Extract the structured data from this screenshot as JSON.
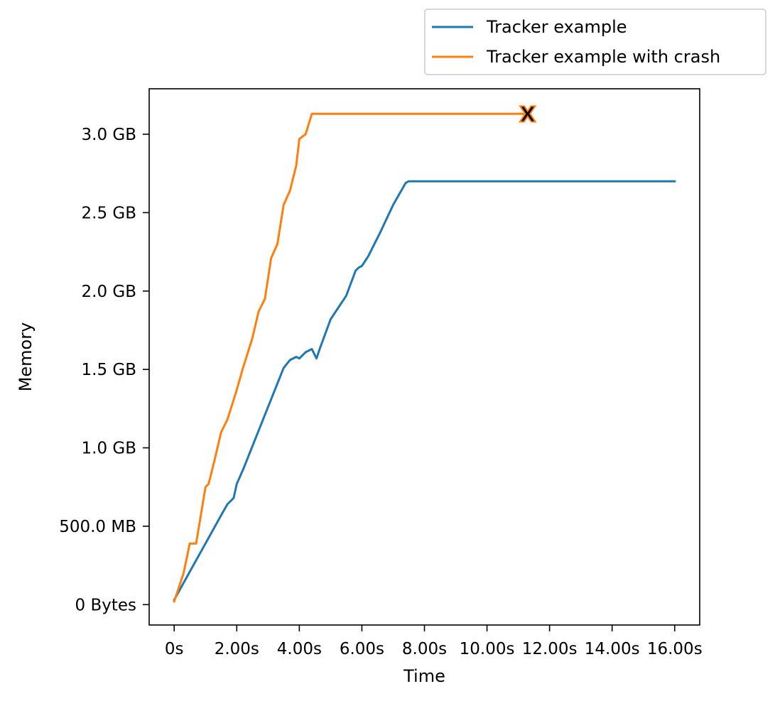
{
  "chart_data": {
    "type": "line",
    "xlabel": "Time",
    "ylabel": "Memory",
    "xlim": [
      -0.8,
      16.8
    ],
    "ylim": [
      -0.13,
      3.29
    ],
    "x_ticks": [
      {
        "value": 0,
        "label": "0s"
      },
      {
        "value": 2,
        "label": "2.00s"
      },
      {
        "value": 4,
        "label": "4.00s"
      },
      {
        "value": 6,
        "label": "6.00s"
      },
      {
        "value": 8,
        "label": "8.00s"
      },
      {
        "value": 10,
        "label": "10.00s"
      },
      {
        "value": 12,
        "label": "12.00s"
      },
      {
        "value": 14,
        "label": "14.00s"
      },
      {
        "value": 16,
        "label": "16.00s"
      }
    ],
    "y_ticks": [
      {
        "value": 0,
        "label": "0 Bytes"
      },
      {
        "value": 0.5,
        "label": "500.0 MB"
      },
      {
        "value": 1.0,
        "label": "1.0 GB"
      },
      {
        "value": 1.5,
        "label": "1.5 GB"
      },
      {
        "value": 2.0,
        "label": "2.0 GB"
      },
      {
        "value": 2.5,
        "label": "2.5 GB"
      },
      {
        "value": 3.0,
        "label": "3.0 GB"
      }
    ],
    "grid": false,
    "legend_position": "top-right, outside axes",
    "crash_marker": {
      "series": 1,
      "symbol": "X",
      "x": 11.3,
      "y": 3.13
    },
    "series": [
      {
        "name": "Tracker example",
        "color": "#1f77b4",
        "x": [
          0,
          0.5,
          1.0,
          1.5,
          1.7,
          1.9,
          2.0,
          2.2,
          2.4,
          2.6,
          2.9,
          3.2,
          3.5,
          3.7,
          3.9,
          4.0,
          4.2,
          4.4,
          4.55,
          4.65,
          5.0,
          5.5,
          5.8,
          5.9,
          6.0,
          6.2,
          6.6,
          7.0,
          7.4,
          7.5,
          8.0,
          10.0,
          12.0,
          14.0,
          16.0
        ],
        "y": [
          0.03,
          0.21,
          0.39,
          0.57,
          0.64,
          0.68,
          0.77,
          0.86,
          0.96,
          1.06,
          1.21,
          1.36,
          1.51,
          1.56,
          1.58,
          1.57,
          1.61,
          1.63,
          1.57,
          1.63,
          1.82,
          1.97,
          2.13,
          2.15,
          2.16,
          2.22,
          2.38,
          2.55,
          2.69,
          2.7,
          2.7,
          2.7,
          2.7,
          2.7,
          2.7
        ]
      },
      {
        "name": "Tracker example with crash",
        "color": "#ff7f0e",
        "x": [
          0,
          0.3,
          0.5,
          0.7,
          1.0,
          1.1,
          1.3,
          1.5,
          1.7,
          2.0,
          2.2,
          2.5,
          2.7,
          2.9,
          3.1,
          3.3,
          3.5,
          3.7,
          3.9,
          4.0,
          4.2,
          4.4,
          4.5,
          5.0,
          6.0,
          8.0,
          10.0,
          11.3
        ],
        "y": [
          0.02,
          0.2,
          0.39,
          0.39,
          0.75,
          0.77,
          0.93,
          1.1,
          1.18,
          1.37,
          1.51,
          1.7,
          1.87,
          1.95,
          2.21,
          2.3,
          2.55,
          2.64,
          2.8,
          2.97,
          3.0,
          3.13,
          3.13,
          3.13,
          3.13,
          3.13,
          3.13,
          3.13
        ]
      }
    ]
  }
}
